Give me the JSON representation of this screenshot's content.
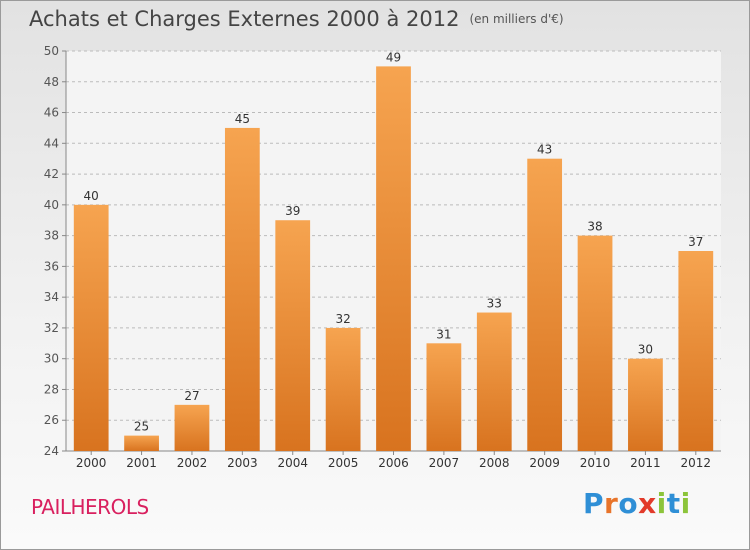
{
  "chart_data": {
    "type": "bar",
    "title": "Achats et Charges Externes 2000 à 2012",
    "subtitle": "(en milliers d'€)",
    "categories": [
      "2000",
      "2001",
      "2002",
      "2003",
      "2004",
      "2005",
      "2006",
      "2007",
      "2008",
      "2009",
      "2010",
      "2011",
      "2012"
    ],
    "values": [
      40,
      25,
      27,
      45,
      39,
      32,
      49,
      31,
      33,
      43,
      38,
      30,
      37
    ],
    "ylim": [
      24,
      50
    ],
    "yticks": [
      24,
      26,
      28,
      30,
      32,
      34,
      36,
      38,
      40,
      42,
      44,
      46,
      48,
      50
    ],
    "grid": true,
    "bar_color": "#f29a3c",
    "xlabel": "",
    "ylabel": ""
  },
  "footer": {
    "commune": "PAILHEROLS",
    "logo_text": "Proxiti",
    "logo_letters": [
      {
        "ch": "P",
        "color": "#2f8fd6"
      },
      {
        "ch": "r",
        "color": "#e8742a"
      },
      {
        "ch": "o",
        "color": "#2f8fd6"
      },
      {
        "ch": "x",
        "color": "#e23a2a"
      },
      {
        "ch": "i",
        "color": "#8cc43a"
      },
      {
        "ch": "t",
        "color": "#2f8fd6"
      },
      {
        "ch": "i",
        "color": "#8cc43a"
      }
    ]
  }
}
